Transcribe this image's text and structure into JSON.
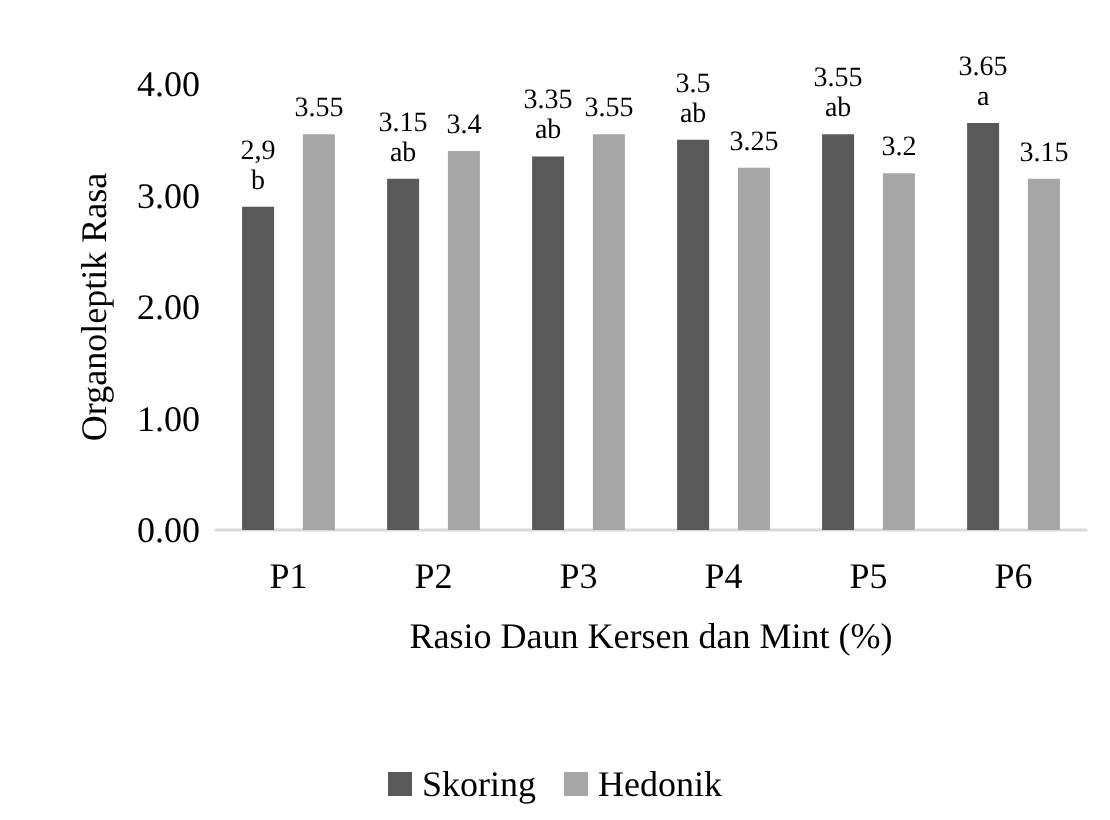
{
  "chart_data": {
    "type": "bar",
    "xlabel": "Rasio Daun Kersen dan Mint (%)",
    "ylabel": "Organoleptik Rasa",
    "categories": [
      "P1",
      "P2",
      "P3",
      "P4",
      "P5",
      "P6"
    ],
    "series": [
      {
        "name": "Skoring",
        "color": "#595959",
        "values": [
          2.9,
          3.15,
          3.35,
          3.5,
          3.55,
          3.65
        ],
        "value_labels": [
          "2,9",
          "3.15",
          "3.35",
          "3.5",
          "3.55",
          "3.65"
        ]
      },
      {
        "name": "Hedonik",
        "color": "#a6a6a6",
        "values": [
          3.55,
          3.4,
          3.55,
          3.25,
          3.2,
          3.15
        ],
        "value_labels": [
          "3.55",
          "3.4",
          "3.55",
          "3.25",
          "3.2",
          "3.15"
        ]
      }
    ],
    "annotations": [
      "b",
      "ab",
      "ab",
      "ab",
      "ab",
      "a"
    ],
    "ylim": [
      0,
      4
    ],
    "yticks": [
      {
        "value": 0,
        "label": "0.00"
      },
      {
        "value": 1,
        "label": "1.00"
      },
      {
        "value": 2,
        "label": "2.00"
      },
      {
        "value": 3,
        "label": "3.00"
      },
      {
        "value": 4,
        "label": "4.00"
      }
    ],
    "grid": false,
    "legend": "bottom"
  }
}
